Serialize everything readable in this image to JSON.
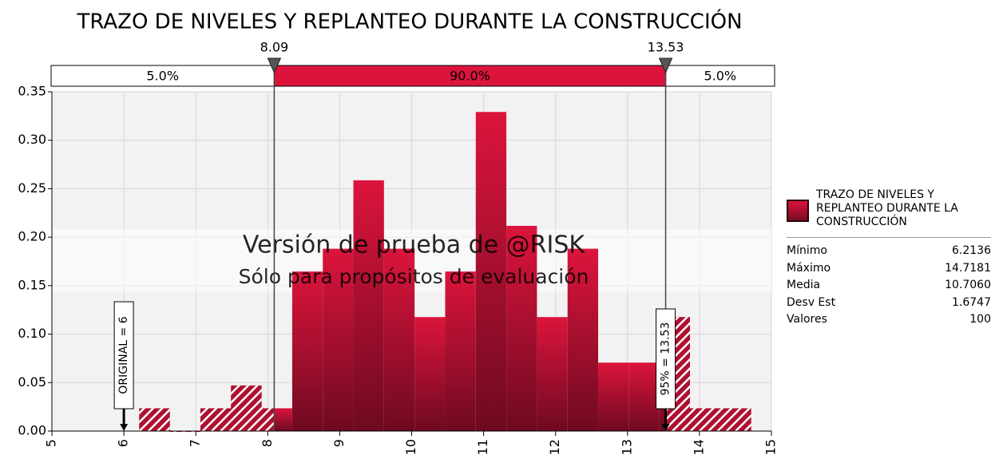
{
  "chart_data": {
    "type": "histogram",
    "title": "TRAZO DE NIVELES Y REPLANTEO DURANTE LA CONSTRUCCIÓN",
    "bins": [
      6.2136,
      6.6388,
      7.0641,
      7.4893,
      7.9145,
      8.3397,
      8.765,
      9.1902,
      9.6154,
      10.0406,
      10.4659,
      10.8911,
      11.3163,
      11.7415,
      12.1668,
      12.592,
      13.0172,
      13.4424,
      13.8677,
      14.2929,
      14.7181
    ],
    "series": [
      {
        "name": "TRAZO DE NIVELES Y REPLANTEO DURANTE LA CONSTRUCCIÓN",
        "color": "#dc143c",
        "values": [
          0.0235,
          0,
          0.0235,
          0.047,
          0.0235,
          0.1646,
          0.1881,
          0.2587,
          0.1881,
          0.1176,
          0.1646,
          0.3292,
          0.2117,
          0.1176,
          0.1881,
          0.0706,
          0.0706,
          0.1176,
          0.0235,
          0.0235
        ]
      }
    ],
    "xlim": [
      5,
      15
    ],
    "xticks": [
      5,
      6,
      7,
      8,
      9,
      10,
      11,
      12,
      13,
      14,
      15
    ],
    "ylim": [
      0,
      0.35
    ],
    "yticks": [
      {
        "value": 0,
        "label": "0.00"
      },
      0.05,
      {
        "value": 0.1,
        "label": "0.10"
      },
      0.15,
      {
        "value": 0.2,
        "label": "0.20"
      },
      0.25,
      {
        "value": 0.3,
        "label": "0.30"
      },
      0.35
    ],
    "grid": true,
    "delimiters": [
      8.09,
      13.53
    ],
    "bands": {
      "values": [
        5,
        90,
        5
      ],
      "value_labels": [
        "5.0%",
        "90.0%",
        "5.0%"
      ]
    },
    "markers": [
      {
        "label": "ORIGINAL = 6",
        "x": 6
      },
      {
        "label": "95% = 13.53",
        "x": 13.53
      }
    ],
    "watermark": [
      "Versión de prueba de @RISK",
      "Sólo para propósitos de evaluación"
    ],
    "stats": {
      "names": [
        "Mínimo",
        "Máximo",
        "Media",
        "Desv Est",
        "Valores"
      ],
      "values": [
        6.2136,
        14.7181,
        10.706,
        1.6747,
        100
      ],
      "value_labels": [
        "6.2136",
        "14.7181",
        "10.7060",
        "1.6747",
        "100"
      ]
    }
  }
}
